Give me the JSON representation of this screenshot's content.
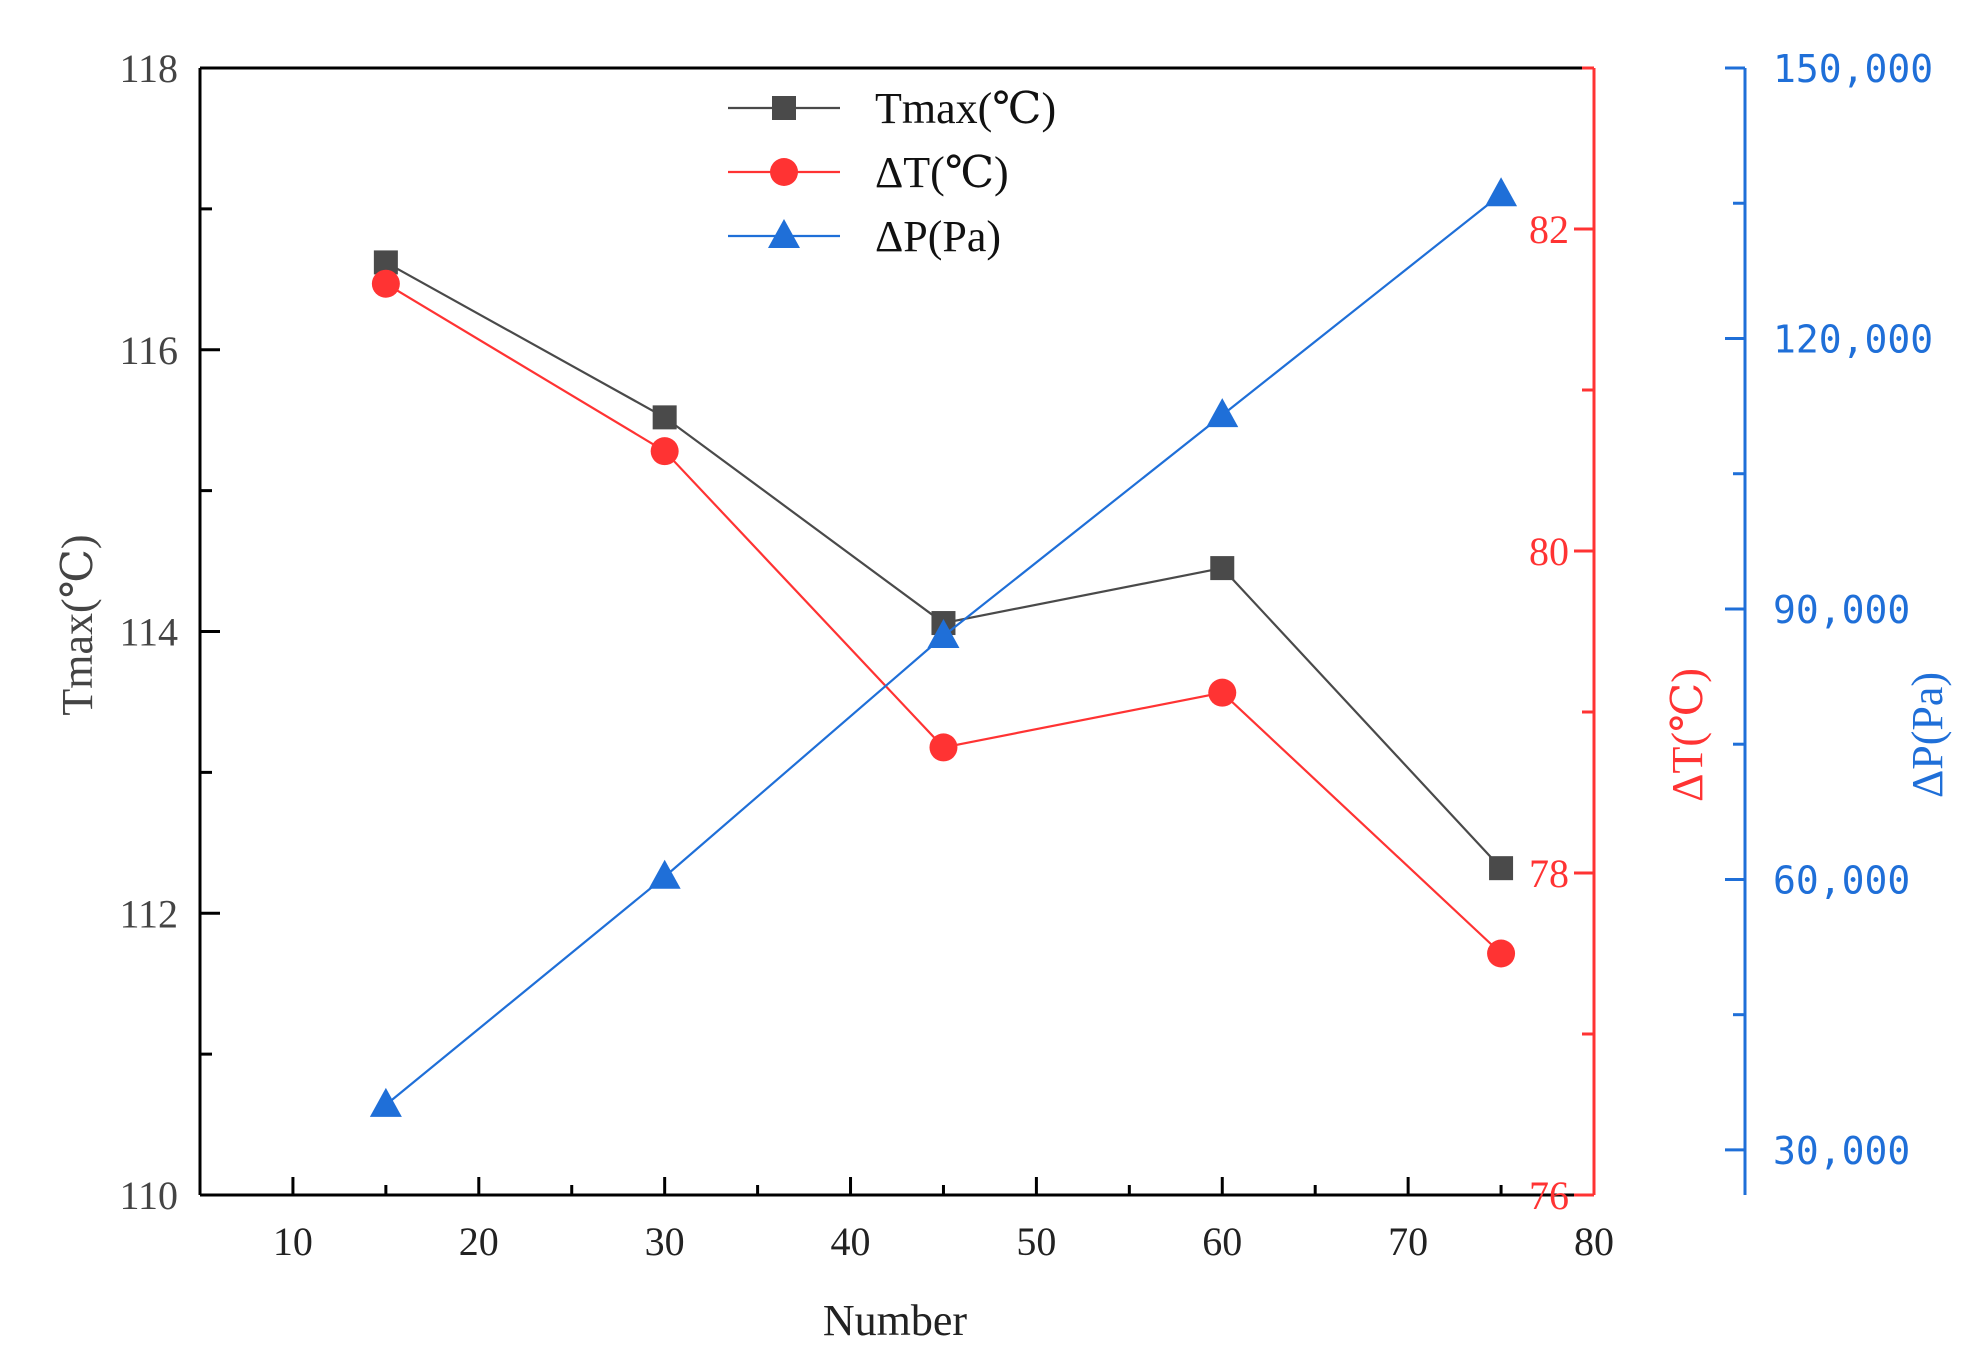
{
  "chart_data": {
    "type": "line",
    "xlabel": "Number",
    "x": [
      15,
      30,
      45,
      60,
      75
    ],
    "xlim": [
      5,
      80
    ],
    "xticks": [
      10,
      20,
      30,
      40,
      50,
      60,
      70,
      80
    ],
    "xtick_labels": [
      "10",
      "20",
      "30",
      "40",
      "50",
      "60",
      "70",
      "80"
    ],
    "axes": {
      "left": {
        "label": "Tmax(℃)",
        "lim": [
          110,
          118
        ],
        "ticks": [
          110,
          112,
          114,
          116,
          118
        ],
        "tick_labels": [
          "110",
          "112",
          "114",
          "116",
          "118"
        ],
        "minor_step": 1,
        "color": "#333333"
      },
      "right1": {
        "label": "ΔT(℃)",
        "lim": [
          76,
          83
        ],
        "ticks": [
          76,
          78,
          80,
          82
        ],
        "tick_labels": [
          "76",
          "78",
          "80",
          "82"
        ],
        "minor_step": 1,
        "color": "#ff3333"
      },
      "right2": {
        "label": "ΔP(Pa)",
        "lim": [
          25000,
          150000
        ],
        "ticks": [
          30000,
          60000,
          90000,
          120000,
          150000
        ],
        "tick_labels": [
          "30,000",
          "60,000",
          "90,000",
          "120,000",
          "150,000"
        ],
        "minor_step": 15000,
        "color": "#1f6fd8"
      }
    },
    "series": [
      {
        "name": "Tmax(℃)",
        "axis": "left",
        "marker": "square",
        "color": "#4a4a4a",
        "values": [
          116.62,
          115.52,
          114.06,
          114.45,
          112.32
        ]
      },
      {
        "name": "ΔT(℃)",
        "axis": "right1",
        "marker": "circle",
        "color": "#ff3333",
        "values": [
          81.66,
          80.62,
          78.78,
          79.12,
          77.5
        ]
      },
      {
        "name": "ΔP(Pa)",
        "axis": "right2",
        "marker": "triangle",
        "color": "#1f6fd8",
        "values": [
          35000,
          60300,
          87000,
          111500,
          136000
        ]
      }
    ],
    "legend": {
      "placement": "top-center"
    }
  }
}
